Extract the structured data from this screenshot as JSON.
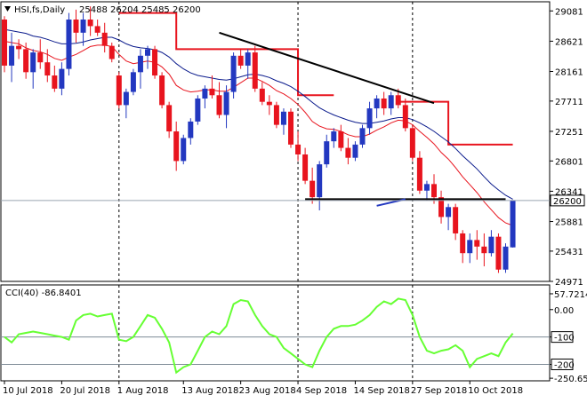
{
  "header": {
    "symbol_label": "HSI,fs,Daily",
    "ohlc_label": "25488 26204 25485 26200"
  },
  "colors": {
    "bull": "#2338c0",
    "bear": "#e8141e",
    "ma_fast": "#e8141e",
    "ma_slow": "#0a1a8c",
    "stop_line": "#e8141e",
    "trend_line": "#000000",
    "cci": "#66ff33",
    "price_tag_bg": "#ffffff"
  },
  "chart_data": [
    {
      "type": "candlestick",
      "name": "price",
      "ylim": [
        24971,
        29220
      ],
      "y_ticks": [
        29081,
        28621,
        28161,
        27711,
        27251,
        26801,
        26341,
        25881,
        25431,
        24971
      ],
      "last_price_label": "26200",
      "last_price": 26200,
      "x_labels": [
        "10 Jul 2018",
        "20 Jul 2018",
        "1 Aug 2018",
        "13 Aug 2018",
        "23 Aug 2018",
        "4 Sep 2018",
        "14 Sep 2018",
        "27 Sep 2018",
        "10 Oct 2018"
      ],
      "x_label_index": [
        0,
        8,
        16,
        25,
        33,
        41,
        49,
        57,
        65
      ],
      "vline_index": [
        16,
        41,
        57
      ],
      "candles": [
        [
          28950,
          29000,
          28150,
          28250
        ],
        [
          28250,
          28750,
          28000,
          28550
        ],
        [
          28550,
          28650,
          28350,
          28500
        ],
        [
          28500,
          28600,
          28050,
          28150
        ],
        [
          28150,
          28500,
          27900,
          28450
        ],
        [
          28450,
          28650,
          28200,
          28300
        ],
        [
          28300,
          28500,
          28000,
          28100
        ],
        [
          28100,
          28250,
          27850,
          27900
        ],
        [
          27900,
          28300,
          27800,
          28200
        ],
        [
          28200,
          29050,
          28100,
          28950
        ],
        [
          28950,
          29100,
          28600,
          28750
        ],
        [
          28750,
          29050,
          28550,
          28950
        ],
        [
          28950,
          29150,
          28700,
          28850
        ],
        [
          28850,
          28950,
          28700,
          28750
        ],
        [
          28750,
          28900,
          28450,
          28550
        ],
        [
          28550,
          28600,
          28300,
          28350
        ],
        [
          28100,
          28150,
          27600,
          27650
        ],
        [
          27650,
          27900,
          27450,
          27850
        ],
        [
          27850,
          28200,
          27800,
          28150
        ],
        [
          28150,
          28500,
          27900,
          28400
        ],
        [
          28400,
          28550,
          28200,
          28500
        ],
        [
          28500,
          28550,
          28050,
          28100
        ],
        [
          28100,
          28150,
          27600,
          27650
        ],
        [
          27650,
          27700,
          27150,
          27250
        ],
        [
          27250,
          27400,
          26650,
          26800
        ],
        [
          26800,
          27200,
          26750,
          27150
        ],
        [
          27150,
          27450,
          27050,
          27400
        ],
        [
          27400,
          27800,
          27350,
          27750
        ],
        [
          27750,
          27950,
          27600,
          27900
        ],
        [
          27900,
          28100,
          27750,
          27800
        ],
        [
          27800,
          28000,
          27450,
          27500
        ],
        [
          27500,
          27950,
          27300,
          27850
        ],
        [
          27850,
          28450,
          27750,
          28400
        ],
        [
          28400,
          28500,
          28200,
          28250
        ],
        [
          28250,
          28500,
          28050,
          28450
        ],
        [
          28450,
          28550,
          27850,
          27900
        ],
        [
          27900,
          28000,
          27650,
          27700
        ],
        [
          27700,
          27800,
          27500,
          27650
        ],
        [
          27650,
          27700,
          27300,
          27350
        ],
        [
          27350,
          27600,
          27200,
          27550
        ],
        [
          27550,
          27600,
          27000,
          27050
        ],
        [
          27050,
          27250,
          26800,
          26900
        ],
        [
          26900,
          27000,
          26450,
          26500
        ],
        [
          26500,
          26700,
          26150,
          26250
        ],
        [
          26250,
          26800,
          26050,
          26750
        ],
        [
          26750,
          27200,
          26700,
          27100
        ],
        [
          27100,
          27300,
          27000,
          27250
        ],
        [
          27250,
          27350,
          26950,
          27000
        ],
        [
          27000,
          27150,
          26750,
          26850
        ],
        [
          26850,
          27100,
          26800,
          27050
        ],
        [
          27050,
          27350,
          27000,
          27300
        ],
        [
          27300,
          27700,
          27200,
          27600
        ],
        [
          27600,
          27800,
          27450,
          27750
        ],
        [
          27750,
          27850,
          27500,
          27600
        ],
        [
          27600,
          27850,
          27500,
          27800
        ],
        [
          27800,
          27900,
          27600,
          27650
        ],
        [
          27650,
          27750,
          27250,
          27300
        ],
        [
          27300,
          27350,
          26800,
          26850
        ],
        [
          26850,
          26950,
          26300,
          26350
        ],
        [
          26350,
          26500,
          26200,
          26450
        ],
        [
          26450,
          26600,
          26150,
          26250
        ],
        [
          26250,
          26350,
          25850,
          25950
        ],
        [
          25950,
          26150,
          25750,
          26100
        ],
        [
          26100,
          26150,
          25600,
          25700
        ],
        [
          25700,
          25750,
          25250,
          25400
        ],
        [
          25400,
          25700,
          25250,
          25600
        ],
        [
          25600,
          25750,
          25300,
          25500
        ],
        [
          25500,
          25700,
          25200,
          25400
        ],
        [
          25400,
          25750,
          25350,
          25650
        ],
        [
          25650,
          25700,
          25100,
          25150
        ],
        [
          25150,
          25550,
          25100,
          25500
        ],
        [
          25488,
          26204,
          25485,
          26200
        ]
      ],
      "ma_fast": [
        28620,
        28600,
        28580,
        28520,
        28480,
        28460,
        28420,
        28360,
        28330,
        28380,
        28420,
        28480,
        28540,
        28560,
        28560,
        28540,
        28420,
        28320,
        28280,
        28300,
        28320,
        28300,
        28230,
        28120,
        27950,
        27880,
        27850,
        27860,
        27880,
        27880,
        27860,
        27860,
        27920,
        27990,
        28060,
        28060,
        28010,
        27950,
        27870,
        27820,
        27750,
        27660,
        27540,
        27400,
        27330,
        27290,
        27280,
        27250,
        27200,
        27170,
        27170,
        27210,
        27270,
        27320,
        27380,
        27420,
        27410,
        27350,
        27250,
        27160,
        27060,
        26930,
        26830,
        26700,
        26560,
        26440,
        26320,
        26180,
        26060,
        25940,
        25860,
        25820
      ],
      "ma_slow": [
        28800,
        28780,
        28760,
        28740,
        28700,
        28680,
        28650,
        28610,
        28580,
        28580,
        28590,
        28610,
        28640,
        28660,
        28680,
        28680,
        28640,
        28580,
        28540,
        28520,
        28510,
        28490,
        28450,
        28380,
        28280,
        28200,
        28140,
        28100,
        28080,
        28060,
        28040,
        28030,
        28050,
        28080,
        28110,
        28120,
        28100,
        28070,
        28020,
        27980,
        27930,
        27860,
        27780,
        27690,
        27610,
        27550,
        27500,
        27460,
        27420,
        27390,
        27370,
        27370,
        27390,
        27410,
        27440,
        27460,
        27460,
        27430,
        27380,
        27320,
        27250,
        27170,
        27090,
        26990,
        26880,
        26780,
        26680,
        26560,
        26450,
        26360,
        26280,
        26220
      ],
      "stop_levels": [
        {
          "from": 16,
          "to": 24,
          "value": 29050
        },
        {
          "from": 24,
          "to": 41,
          "value": 28500
        },
        {
          "from": 41,
          "to": 46,
          "value": 27800
        },
        {
          "from": 55,
          "to": 62,
          "value": 27700
        },
        {
          "from": 62,
          "to": 71,
          "value": 27050
        }
      ],
      "trend_line": [
        [
          30,
          28750
        ],
        [
          60,
          27680
        ]
      ],
      "support_line": [
        [
          42,
          26220
        ],
        [
          70,
          26220
        ]
      ],
      "blue_segment": [
        [
          52,
          26120
        ],
        [
          56,
          26220
        ]
      ]
    },
    {
      "type": "line",
      "name": "cci",
      "label": "CCI(40) -86.8401",
      "ylim": [
        -260,
        90
      ],
      "y_ticks": [
        {
          "value": 57.7214,
          "label": "57.7214"
        },
        {
          "value": 0,
          "label": "0.00"
        },
        {
          "value": -100,
          "label": "-100"
        },
        {
          "value": -200,
          "label": "-200"
        },
        {
          "value": -250.65,
          "label": "-250.650"
        }
      ],
      "levels": [
        -100,
        -200
      ],
      "values": [
        -100,
        -120,
        -90,
        -85,
        -80,
        -85,
        -90,
        -95,
        -100,
        -110,
        -40,
        -20,
        -15,
        -25,
        -20,
        -15,
        -110,
        -115,
        -100,
        -60,
        -20,
        -30,
        -70,
        -120,
        -230,
        -210,
        -200,
        -150,
        -100,
        -80,
        -90,
        -60,
        20,
        35,
        30,
        -20,
        -60,
        -90,
        -100,
        -140,
        -160,
        -180,
        -200,
        -210,
        -150,
        -100,
        -70,
        -60,
        -60,
        -55,
        -40,
        -20,
        10,
        30,
        20,
        40,
        35,
        -20,
        -100,
        -150,
        -160,
        -150,
        -145,
        -130,
        -150,
        -210,
        -180,
        -170,
        -160,
        -170,
        -120,
        -86.84
      ]
    }
  ]
}
